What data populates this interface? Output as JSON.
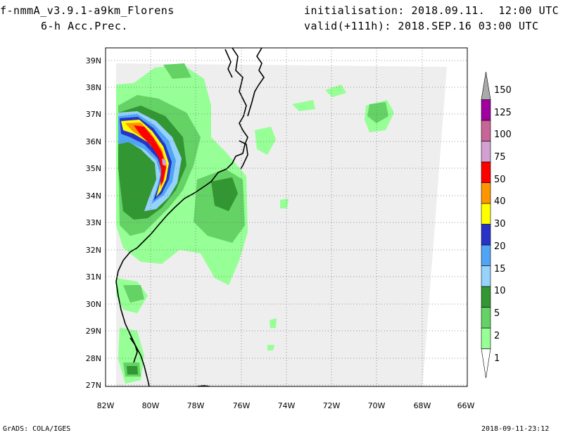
{
  "header": {
    "model": "f-nmmA_v3.9.1-a9km_Florens",
    "field": "6-h Acc.Prec.",
    "init": "initialisation: 2018.09.11.  12:00 UTC",
    "valid": "valid(+111h): 2018.SEP.16 03:00 UTC"
  },
  "footer": {
    "left": "GrADS: COLA/IGES",
    "right": "2018-09-11-23:12"
  },
  "map": {
    "lat_labels": [
      "39N",
      "38N",
      "37N",
      "36N",
      "35N",
      "34N",
      "33N",
      "32N",
      "31N",
      "30N",
      "29N",
      "28N",
      "27N"
    ],
    "lon_labels": [
      "82W",
      "80W",
      "78W",
      "76W",
      "74W",
      "72W",
      "70W",
      "68W",
      "66W"
    ],
    "grid": "dotted"
  },
  "colorbar": {
    "levels": [
      "1",
      "2",
      "5",
      "10",
      "15",
      "20",
      "30",
      "40",
      "50",
      "75",
      "100",
      "125",
      "150"
    ],
    "colors": [
      "#ffffff",
      "#96ff96",
      "#64d264",
      "#329632",
      "#96d2fa",
      "#50a5f5",
      "#2832c8",
      "#ffff00",
      "#ff9600",
      "#ff0000",
      "#d2a0d2",
      "#c86496",
      "#a000a0",
      "#aaaaaa"
    ]
  }
}
